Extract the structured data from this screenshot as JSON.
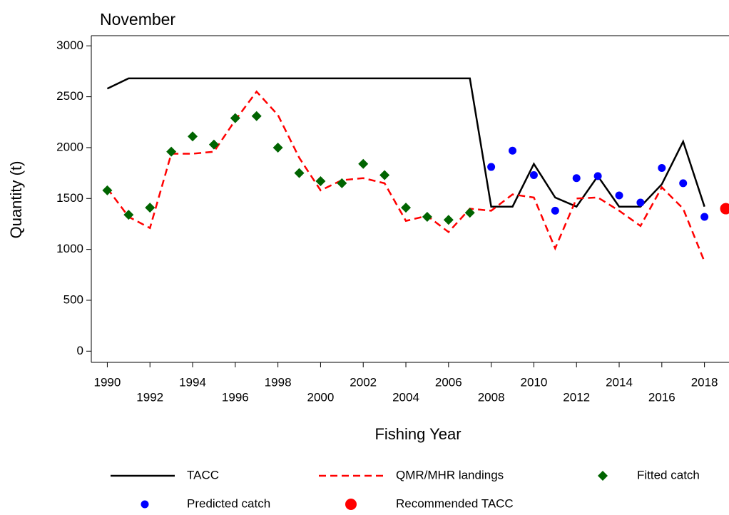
{
  "chart_data": {
    "type": "line",
    "title": "November",
    "x_label": "Fishing Year",
    "y_label": "Quantity (t)",
    "xlim": [
      1989.25,
      2019.15
    ],
    "ylim": [
      -110,
      3100
    ],
    "xticks": [
      1990,
      1992,
      1994,
      1996,
      1998,
      2000,
      2002,
      2004,
      2006,
      2008,
      2010,
      2012,
      2014,
      2016,
      2018
    ],
    "yticks": [
      0,
      500,
      1000,
      1500,
      2000,
      2500,
      3000
    ],
    "series": [
      {
        "name": "TACC",
        "color": "#000000",
        "style": "solid",
        "x": [
          1990,
          1991,
          1992,
          1993,
          1994,
          1995,
          1996,
          1997,
          1998,
          1999,
          2000,
          2001,
          2002,
          2003,
          2004,
          2005,
          2006,
          2007,
          2008,
          2009,
          2010,
          2011,
          2012,
          2013,
          2014,
          2015,
          2016,
          2017,
          2018
        ],
        "values": [
          2580,
          2680,
          2680,
          2680,
          2680,
          2680,
          2680,
          2680,
          2680,
          2680,
          2680,
          2680,
          2680,
          2680,
          2680,
          2680,
          2680,
          2680,
          1420,
          1420,
          1840,
          1510,
          1420,
          1720,
          1420,
          1420,
          1640,
          2060,
          1420
        ]
      },
      {
        "name": "QMR/MHR landings",
        "color": "#ff0000",
        "style": "dashed",
        "x": [
          1990,
          1991,
          1992,
          1993,
          1994,
          1995,
          1996,
          1997,
          1998,
          1999,
          2000,
          2001,
          2002,
          2003,
          2004,
          2005,
          2006,
          2007,
          2008,
          2009,
          2010,
          2011,
          2012,
          2013,
          2014,
          2015,
          2016,
          2017,
          2018
        ],
        "values": [
          1600,
          1320,
          1210,
          1940,
          1940,
          1960,
          2270,
          2550,
          2320,
          1900,
          1580,
          1680,
          1700,
          1650,
          1280,
          1330,
          1170,
          1400,
          1380,
          1540,
          1510,
          1010,
          1500,
          1510,
          1380,
          1230,
          1610,
          1400,
          880
        ]
      },
      {
        "name": "Fitted catch",
        "color": "#006400",
        "style": "diamond",
        "x": [
          1990,
          1991,
          1992,
          1993,
          1994,
          1995,
          1996,
          1997,
          1998,
          1999,
          2000,
          2001,
          2002,
          2003,
          2004,
          2005,
          2006,
          2007
        ],
        "values": [
          1580,
          1340,
          1410,
          1960,
          2110,
          2030,
          2290,
          2310,
          2000,
          1750,
          1670,
          1650,
          1840,
          1730,
          1410,
          1320,
          1290,
          1360
        ]
      },
      {
        "name": "Predicted catch",
        "color": "#0000ff",
        "style": "dot",
        "x": [
          2008,
          2009,
          2010,
          2011,
          2012,
          2013,
          2014,
          2015,
          2016,
          2017,
          2018
        ],
        "values": [
          1810,
          1970,
          1730,
          1380,
          1700,
          1720,
          1530,
          1460,
          1800,
          1650,
          1320
        ]
      },
      {
        "name": "Recommended TACC",
        "color": "#ff0000",
        "style": "bigdot",
        "x": [
          2019
        ],
        "values": [
          1400
        ]
      }
    ]
  }
}
